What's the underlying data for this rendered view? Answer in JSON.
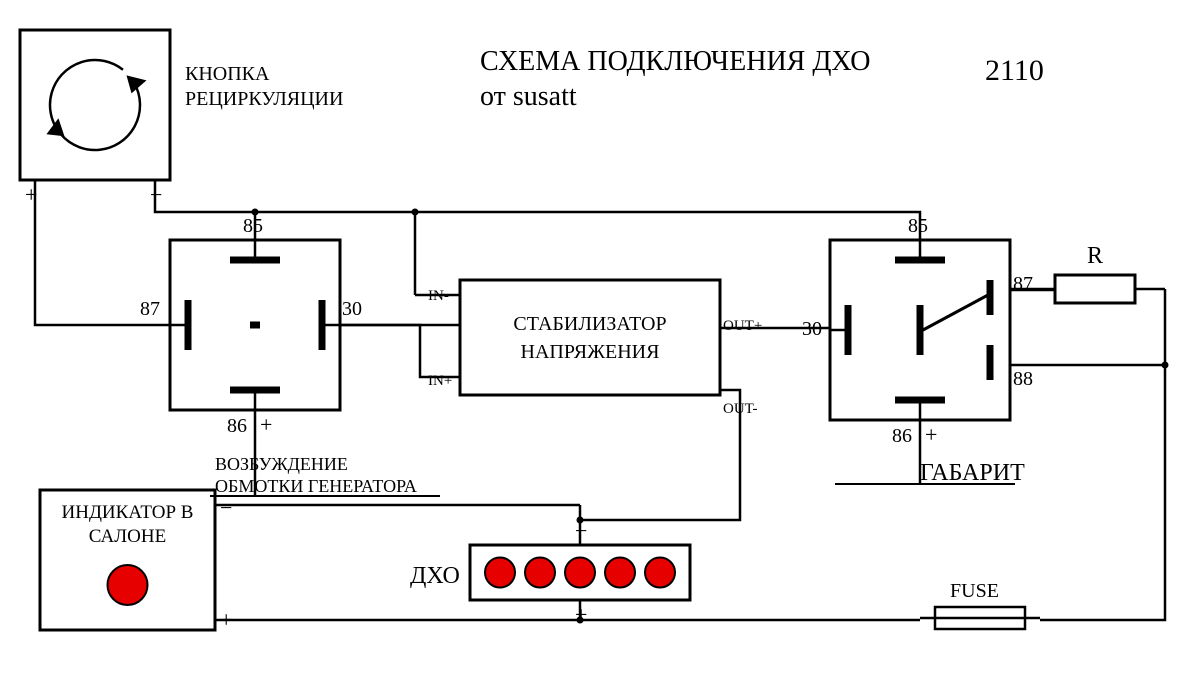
{
  "title_line1": "СХЕМА ПОДКЛЮЧЕНИЯ ДХО",
  "title_line2": "от susatt",
  "title_model": "2110",
  "recirc_button_lbl_l1": "КНОПКА",
  "recirc_button_lbl_l2": "РЕЦИРКУЛЯЦИИ",
  "indicator_lbl_l1": "ИНДИКАТОР В",
  "indicator_lbl_l2": "САЛОНЕ",
  "stabilizer_l1": "СТАБИЛИЗАТОР",
  "stabilizer_l2": "НАПРЯЖЕНИЯ",
  "dho_label": "ДХО",
  "fuse_label": "FUSE",
  "gabarit_label": "ГАБАРИТ",
  "resistor_label": "R",
  "gen_field_l1": "ВОЗБУЖДЕНИЕ",
  "gen_field_l2": "ОБМОТКИ ГЕНЕРАТОРА",
  "relay1": {
    "p85": "85",
    "p86": "86",
    "p87": "87",
    "p30": "30"
  },
  "relay2": {
    "p85": "85",
    "p86": "86",
    "p87": "87",
    "p88": "88",
    "p30": "30"
  },
  "stab_pins": {
    "in_minus": "IN-",
    "in_plus": "IN+",
    "out_plus": "OUT+",
    "out_minus": "OUT-"
  },
  "polarity": {
    "plus": "+",
    "minus": "−"
  },
  "style": {
    "wire_color": "#000000",
    "wire_width": 2.5,
    "box_stroke": 3,
    "led_color": "#e60000",
    "led_stroke": "#000000",
    "bg": "#ffffff",
    "font_title": 28,
    "font_label": 20,
    "font_pin": 20,
    "font_small": 15
  },
  "dho_led_count": 5
}
